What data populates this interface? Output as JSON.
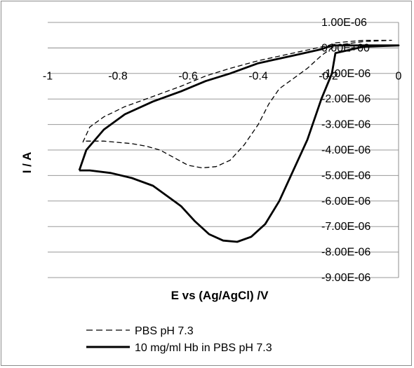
{
  "chart_data": {
    "type": "line",
    "title": "",
    "xlabel": "E vs (Ag/AgCl) /V",
    "ylabel": "I / A",
    "xlim": [
      -1,
      0
    ],
    "ylim": [
      -9e-06,
      1e-06
    ],
    "x_ticks": [
      {
        "value": -1,
        "label": "-1"
      },
      {
        "value": -0.8,
        "label": "-0.8"
      },
      {
        "value": -0.6,
        "label": "-0.6"
      },
      {
        "value": -0.4,
        "label": "-0.4"
      },
      {
        "value": -0.2,
        "label": "-0.2"
      },
      {
        "value": 0,
        "label": "0"
      }
    ],
    "y_ticks": [
      {
        "value": 1e-06,
        "label": "1.00E-06"
      },
      {
        "value": 0,
        "label": "0.00E+00"
      },
      {
        "value": -1e-06,
        "label": "-1.00E-06"
      },
      {
        "value": -2e-06,
        "label": "-2.00E-06"
      },
      {
        "value": -3e-06,
        "label": "-3.00E-06"
      },
      {
        "value": -4e-06,
        "label": "-4.00E-06"
      },
      {
        "value": -5e-06,
        "label": "-5.00E-06"
      },
      {
        "value": -6e-06,
        "label": "-6.00E-06"
      },
      {
        "value": -7e-06,
        "label": "-7.00E-06"
      },
      {
        "value": -8e-06,
        "label": "-8.00E-06"
      },
      {
        "value": -9e-06,
        "label": "-9.00E-06"
      }
    ],
    "grid": "horizontal",
    "legend": "bottom",
    "series": [
      {
        "name": "PBS pH 7.3",
        "style": "dashed",
        "color": "#000000",
        "x": [
          -0.9,
          -0.88,
          -0.84,
          -0.78,
          -0.7,
          -0.62,
          -0.55,
          -0.48,
          -0.4,
          -0.3,
          -0.2,
          -0.18,
          -0.1,
          -0.02,
          -0.02,
          -0.1,
          -0.18,
          -0.22,
          -0.26,
          -0.3,
          -0.34,
          -0.37,
          -0.4,
          -0.44,
          -0.48,
          -0.52,
          -0.56,
          -0.6,
          -0.64,
          -0.68,
          -0.72,
          -0.76,
          -0.8,
          -0.84,
          -0.88,
          -0.9
        ],
        "y": [
          -3.7e-06,
          -3.1e-06,
          -2.7e-06,
          -2.3e-06,
          -1.9e-06,
          -1.5e-06,
          -1.1e-06,
          -8e-07,
          -5e-07,
          -2e-07,
          1e-07,
          2e-07,
          3e-07,
          3e-07,
          3e-07,
          2.5e-07,
          1e-07,
          -3e-07,
          -8e-07,
          -1.2e-06,
          -1.6e-06,
          -2.2e-06,
          -3e-06,
          -3.8e-06,
          -4.4e-06,
          -4.65e-06,
          -4.7e-06,
          -4.6e-06,
          -4.3e-06,
          -4e-06,
          -3.85e-06,
          -3.75e-06,
          -3.7e-06,
          -3.65e-06,
          -3.65e-06,
          -3.65e-06
        ]
      },
      {
        "name": "10 mg/ml Hb in PBS pH 7.3",
        "style": "solid",
        "color": "#000000",
        "x": [
          -0.91,
          -0.89,
          -0.84,
          -0.78,
          -0.7,
          -0.62,
          -0.55,
          -0.48,
          -0.4,
          -0.3,
          -0.22,
          -0.2,
          -0.18,
          -0.1,
          0.0,
          0.0,
          -0.1,
          -0.18,
          -0.19,
          -0.22,
          -0.26,
          -0.3,
          -0.34,
          -0.38,
          -0.42,
          -0.46,
          -0.5,
          -0.54,
          -0.58,
          -0.62,
          -0.66,
          -0.7,
          -0.76,
          -0.82,
          -0.88,
          -0.91
        ],
        "y": [
          -4.8e-06,
          -4e-06,
          -3.2e-06,
          -2.6e-06,
          -2.1e-06,
          -1.7e-06,
          -1.3e-06,
          -1e-06,
          -6e-07,
          -3e-07,
          -5e-08,
          5e-08,
          1e-07,
          1e-07,
          1e-07,
          1e-07,
          5e-08,
          -2e-07,
          -1e-06,
          -2e-06,
          -3.6e-06,
          -4.8e-06,
          -6e-06,
          -6.9e-06,
          -7.4e-06,
          -7.6e-06,
          -7.55e-06,
          -7.3e-06,
          -6.8e-06,
          -6.2e-06,
          -5.8e-06,
          -5.4e-06,
          -5.1e-06,
          -4.9e-06,
          -4.8e-06,
          -4.8e-06
        ]
      }
    ]
  }
}
